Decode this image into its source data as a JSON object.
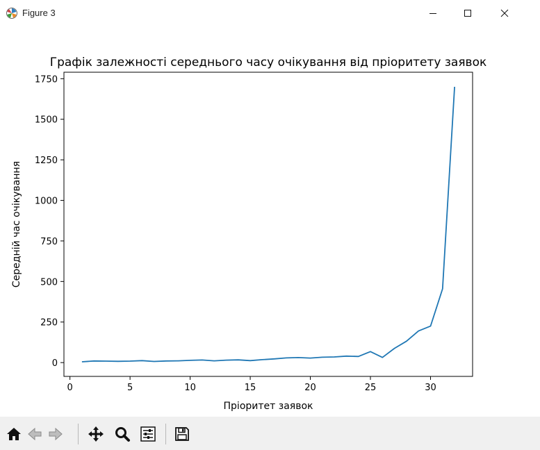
{
  "window": {
    "title": "Figure 3",
    "icon": "matplotlib-icon",
    "controls": [
      "minimize-icon",
      "maximize-icon",
      "close-icon"
    ]
  },
  "toolbar": {
    "buttons": [
      "home-icon",
      "back-icon",
      "forward-icon",
      "pan-icon",
      "zoom-icon",
      "configure-subplots-icon",
      "save-icon"
    ]
  },
  "chart_data": {
    "type": "line",
    "title": "Графік залежності середнього часу очікування від пріоритету заявок",
    "xlabel": "Пріоритет заявок",
    "ylabel": "Середній час очікування",
    "xlim": [
      -0.5,
      33.5
    ],
    "ylim": [
      -85,
      1790
    ],
    "xticks": [
      0,
      5,
      10,
      15,
      20,
      25,
      30
    ],
    "yticks": [
      0,
      250,
      500,
      750,
      1000,
      1250,
      1500,
      1750
    ],
    "grid": false,
    "line_color": "#1f77b4",
    "series": [
      {
        "x": [
          1,
          2,
          3,
          4,
          5,
          6,
          7,
          8,
          9,
          10,
          11,
          12,
          13,
          14,
          15,
          16,
          17,
          18,
          19,
          20,
          21,
          22,
          23,
          24,
          25,
          26,
          27,
          28,
          29,
          30,
          31,
          32
        ],
        "values": [
          5,
          10,
          9,
          8,
          9,
          12,
          7,
          10,
          11,
          14,
          16,
          11,
          15,
          17,
          12,
          18,
          23,
          29,
          31,
          28,
          33,
          35,
          40,
          38,
          68,
          32,
          88,
          132,
          195,
          225,
          455,
          1700
        ]
      }
    ]
  }
}
